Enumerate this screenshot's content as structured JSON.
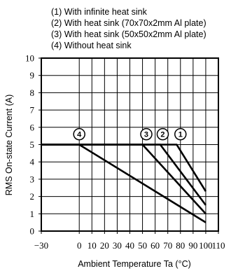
{
  "chart_data": {
    "type": "line",
    "legend": [
      "(1) With infinite heat sink",
      "(2) With heat sink (70x70x2mm Al plate)",
      "(3) With heat sink (50x50x2mm Al plate)",
      "(4) Without heat sink"
    ],
    "xlabel": "Ambient Temperature Ta (°C)",
    "ylabel": "RMS On-state Current (A)",
    "xlim": [
      -30,
      110
    ],
    "ylim": [
      0,
      10
    ],
    "x_ticks": [
      "−30",
      "0",
      "10",
      "20",
      "30",
      "40",
      "50",
      "60",
      "70",
      "80",
      "90",
      "100",
      "110"
    ],
    "x_tick_values": [
      -30,
      0,
      10,
      20,
      30,
      40,
      50,
      60,
      70,
      80,
      90,
      100,
      110
    ],
    "y_ticks": [
      "0",
      "1",
      "2",
      "3",
      "4",
      "5",
      "6",
      "7",
      "8",
      "9",
      "10"
    ],
    "y_tick_values": [
      0,
      1,
      2,
      3,
      4,
      5,
      6,
      7,
      8,
      9,
      10
    ],
    "grid": true,
    "series": [
      {
        "name": "1",
        "x": [
          -30,
          77,
          100
        ],
        "values": [
          5,
          5,
          2.3
        ]
      },
      {
        "name": "2",
        "x": [
          -30,
          64,
          100
        ],
        "values": [
          5,
          5,
          1.5
        ]
      },
      {
        "name": "3",
        "x": [
          -30,
          50,
          100
        ],
        "values": [
          5,
          5,
          1.0
        ]
      },
      {
        "name": "4",
        "x": [
          -30,
          0,
          100
        ],
        "values": [
          5,
          5,
          0.5
        ]
      }
    ],
    "markers": [
      {
        "label": "1",
        "x": 80,
        "y": 5.6
      },
      {
        "label": "2",
        "x": 66,
        "y": 5.6
      },
      {
        "label": "3",
        "x": 53,
        "y": 5.6
      },
      {
        "label": "4",
        "x": 0,
        "y": 5.6
      }
    ]
  }
}
